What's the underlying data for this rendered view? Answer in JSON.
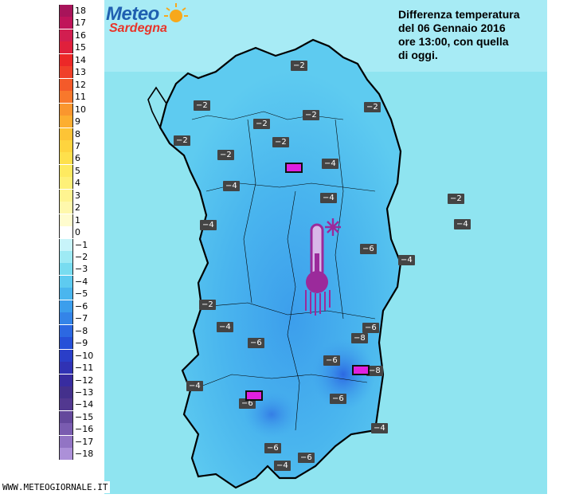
{
  "logo": {
    "line1": "Meteo",
    "line2": "Sardegna"
  },
  "caption": [
    "Differenza temperatura",
    "del 06 Gennaio 2016",
    "ore 13:00, con quella",
    "di oggi."
  ],
  "footer": "WWW.METEOGIORNALE.IT",
  "legend": [
    {
      "label": "18",
      "color": "#a8145a"
    },
    {
      "label": "17",
      "color": "#c0145a"
    },
    {
      "label": "16",
      "color": "#d21e50"
    },
    {
      "label": "15",
      "color": "#e0203c"
    },
    {
      "label": "14",
      "color": "#ec2828"
    },
    {
      "label": "13",
      "color": "#f0402a"
    },
    {
      "label": "12",
      "color": "#f45a2a"
    },
    {
      "label": "11",
      "color": "#f8782c"
    },
    {
      "label": "10",
      "color": "#fa962e"
    },
    {
      "label": "9",
      "color": "#fcae30"
    },
    {
      "label": "8",
      "color": "#fdc436"
    },
    {
      "label": "7",
      "color": "#fed43e"
    },
    {
      "label": "6",
      "color": "#fee04c"
    },
    {
      "label": "5",
      "color": "#feea60"
    },
    {
      "label": "4",
      "color": "#fef078"
    },
    {
      "label": "3",
      "color": "#fff490"
    },
    {
      "label": "2",
      "color": "#fff8ac"
    },
    {
      "label": "1",
      "color": "#fffcce"
    },
    {
      "label": "0",
      "color": "#ffffff"
    },
    {
      "label": "−1",
      "color": "#c8f4fa"
    },
    {
      "label": "−2",
      "color": "#9eeaf4"
    },
    {
      "label": "−3",
      "color": "#78dcf0"
    },
    {
      "label": "−4",
      "color": "#5ecbf0"
    },
    {
      "label": "−5",
      "color": "#4ab6ee"
    },
    {
      "label": "−6",
      "color": "#3c9eec"
    },
    {
      "label": "−7",
      "color": "#3484e8"
    },
    {
      "label": "−8",
      "color": "#2c68e2"
    },
    {
      "label": "−9",
      "color": "#2650d8"
    },
    {
      "label": "−10",
      "color": "#2a3ec8"
    },
    {
      "label": "−11",
      "color": "#3032b4"
    },
    {
      "label": "−12",
      "color": "#382ca0"
    },
    {
      "label": "−13",
      "color": "#44308c"
    },
    {
      "label": "−14",
      "color": "#523890"
    },
    {
      "label": "−15",
      "color": "#64489c"
    },
    {
      "label": "−16",
      "color": "#7a5cb0"
    },
    {
      "label": "−17",
      "color": "#9274c4"
    },
    {
      "label": "−18",
      "color": "#ac90d8"
    }
  ],
  "map_values": [
    {
      "text": "−2",
      "k": "a"
    },
    {
      "text": "−2",
      "k": "b"
    },
    {
      "text": "−2",
      "k": "c"
    },
    {
      "text": "−2",
      "k": "d"
    },
    {
      "text": "−2",
      "k": "e"
    },
    {
      "text": "−2",
      "k": "f"
    },
    {
      "text": "−2",
      "k": "g"
    },
    {
      "text": "−2",
      "k": "h"
    },
    {
      "text": "−4",
      "k": "i"
    },
    {
      "text": "−4",
      "k": "j"
    },
    {
      "text": "−4",
      "k": "k"
    },
    {
      "text": "−2",
      "k": "l"
    },
    {
      "text": "−4",
      "k": "m"
    },
    {
      "text": "−4",
      "k": "n"
    },
    {
      "text": "−6",
      "k": "o"
    },
    {
      "text": "−4",
      "k": "p"
    },
    {
      "text": "−2",
      "k": "q"
    },
    {
      "text": "−4",
      "k": "r"
    },
    {
      "text": "−6",
      "k": "s"
    },
    {
      "text": "−6",
      "k": "t"
    },
    {
      "text": "−8",
      "k": "u"
    },
    {
      "text": "−6",
      "k": "v"
    },
    {
      "text": "−8",
      "k": "w"
    },
    {
      "text": "−4",
      "k": "x"
    },
    {
      "text": "−6",
      "k": "y"
    },
    {
      "text": "−6",
      "k": "z"
    },
    {
      "text": "−4",
      "k": "aa"
    },
    {
      "text": "−6",
      "k": "ab"
    },
    {
      "text": "−4",
      "k": "ac"
    },
    {
      "text": "−6",
      "k": "ad"
    }
  ],
  "colors": {
    "sea_light": "#8fe4f0",
    "land_mid": "#5cc8f0",
    "land_deep": "#3c9eec",
    "land_darkest": "#2c68e2",
    "marker": "#e020e0",
    "icon": "#9b2a9b"
  }
}
